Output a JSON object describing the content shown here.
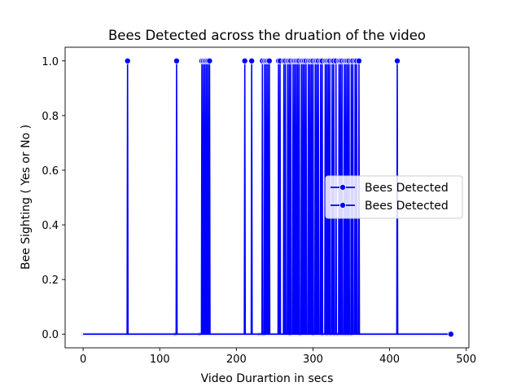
{
  "chart_data": {
    "type": "line",
    "title": "Bees Detected across the druation of the video",
    "xlabel": "Video Durartion in secs",
    "ylabel": "Bee Sighting ( Yes or No )",
    "xlim": [
      -23.5,
      503.5
    ],
    "ylim": [
      -0.05,
      1.05
    ],
    "xticks": [
      0,
      100,
      200,
      300,
      400,
      500
    ],
    "yticks": [
      0.0,
      0.2,
      0.4,
      0.6,
      0.8,
      1.0
    ],
    "grid": false,
    "legend_position": "center-right",
    "color": "#0000ff",
    "marker": "circle",
    "series": [
      {
        "name": "Bees Detected"
      },
      {
        "name": "Bees Detected"
      }
    ],
    "detections_at_1": [
      58,
      122,
      155,
      157,
      159,
      161,
      163,
      165,
      211,
      220,
      234,
      237,
      239,
      241,
      243,
      255,
      257,
      262,
      264,
      267,
      269,
      271,
      274,
      276,
      278,
      280,
      282,
      285,
      287,
      289,
      291,
      294,
      296,
      298,
      300,
      303,
      305,
      307,
      310,
      312,
      316,
      318,
      320,
      322,
      325,
      327,
      330,
      334,
      336,
      338,
      341,
      343,
      345,
      347,
      350,
      352,
      355,
      357,
      360,
      410
    ],
    "x_end": 480
  }
}
